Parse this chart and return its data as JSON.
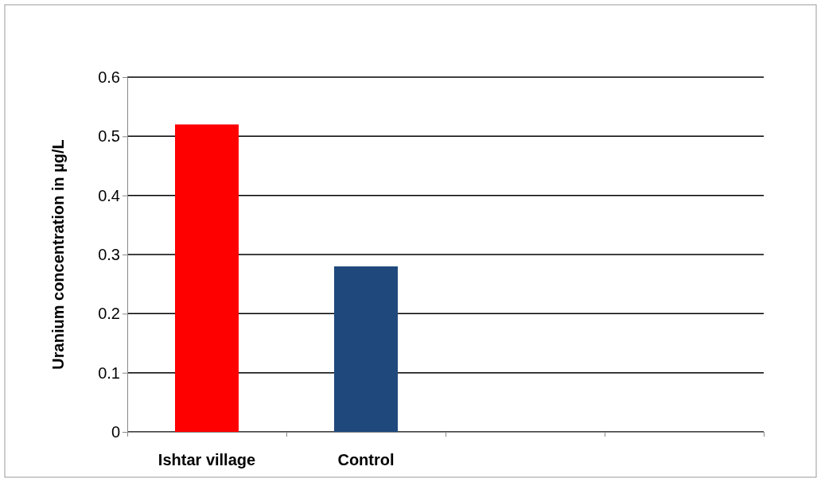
{
  "chart_data": {
    "type": "bar",
    "ylabel": "Uranium concentration in µg/L",
    "categories": [
      "Ishtar village",
      "Control",
      null,
      null
    ],
    "values": [
      0.52,
      0.28,
      null,
      null
    ],
    "colors": [
      "#ff0000",
      "#1f497d",
      null,
      null
    ],
    "ylim": [
      0,
      0.6
    ],
    "yticks": [
      0,
      0.1,
      0.2,
      0.3,
      0.4,
      0.5,
      0.6
    ],
    "grid": "y"
  }
}
